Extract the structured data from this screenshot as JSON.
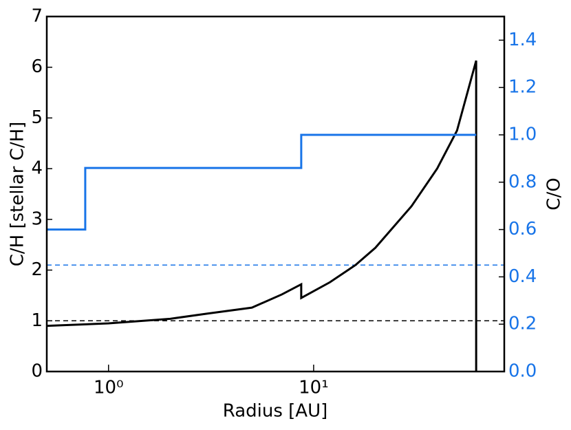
{
  "chart_data": {
    "type": "line",
    "xlabel": "Radius [AU]",
    "ylabel": "C/H [stellar C/H]",
    "y2label": "C/O",
    "y2color": "#1874e8",
    "xscale": "log",
    "xlim": [
      0.5,
      85
    ],
    "xticks": [
      {
        "value": 1,
        "label": "10⁰"
      },
      {
        "value": 10,
        "label": "10¹"
      }
    ],
    "ylim": [
      0,
      7
    ],
    "yticks": [
      0,
      1,
      2,
      3,
      4,
      5,
      6,
      7
    ],
    "y2lim": [
      0,
      1.5
    ],
    "y2ticks": [
      {
        "value": 0,
        "label": "0.0"
      },
      0.2,
      0.4,
      0.6,
      0.8,
      {
        "value": 1,
        "label": "1.0"
      },
      1.2,
      1.4
    ],
    "series": [
      {
        "color": "#000000",
        "x": [
          0.5,
          1,
          2,
          3,
          5,
          7,
          8.7,
          8.7,
          12,
          16,
          20,
          30,
          40,
          50,
          62,
          62
        ],
        "values": [
          0.9,
          0.95,
          1.04,
          1.14,
          1.26,
          1.52,
          1.72,
          1.45,
          1.76,
          2.1,
          2.44,
          3.26,
          4.0,
          4.75,
          6.13,
          0
        ]
      },
      {
        "color": "#1874e8",
        "axis": "y2",
        "x": [
          0.5,
          0.77,
          0.77,
          8.7,
          8.7,
          62
        ],
        "values": [
          0.6,
          0.6,
          0.86,
          0.86,
          1.0,
          1.0
        ]
      }
    ],
    "hlines": [
      {
        "value": 1,
        "color": "#000000"
      },
      {
        "value": 0.45,
        "color": "#1874e8",
        "axis": "y2"
      }
    ]
  }
}
